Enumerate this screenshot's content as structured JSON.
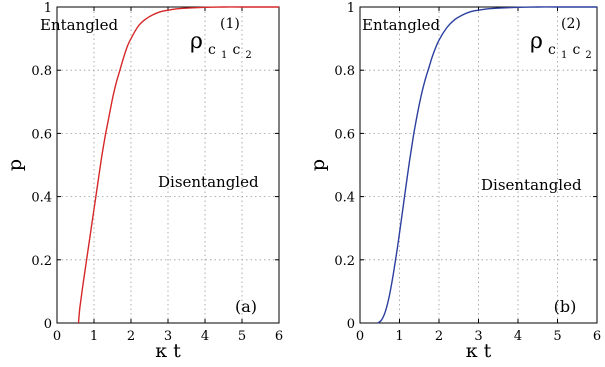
{
  "chart_data": [
    {
      "type": "line",
      "panel_tag": "(a)",
      "xlabel": "κ t",
      "ylabel": "p",
      "xlim": [
        0,
        6
      ],
      "ylim": [
        0,
        1
      ],
      "xticks": [
        "0",
        "1",
        "2",
        "3",
        "4",
        "5",
        "6"
      ],
      "yticks": [
        "0",
        "0.2",
        "0.4",
        "0.6",
        "0.8",
        "1"
      ],
      "grid": true,
      "annotations": {
        "upper_region": "Entangled",
        "lower_region": "Disentangled"
      },
      "state_label": {
        "symbol": "ρ",
        "sup": "(1)",
        "sub1": "c",
        "sub1_index": "1",
        "sub2": "c",
        "sub2_index": "2"
      },
      "series": [
        {
          "color": "#d62728",
          "x": [
            0.58,
            0.62,
            0.7,
            0.8,
            0.9,
            1.0,
            1.1,
            1.2,
            1.3,
            1.4,
            1.5,
            1.6,
            1.7,
            1.8,
            1.9,
            2.0,
            2.2,
            2.4,
            2.6,
            2.8,
            3.0,
            3.3,
            3.6,
            4.0,
            4.5,
            5.0,
            6.0
          ],
          "y": [
            0.0,
            0.05,
            0.12,
            0.2,
            0.28,
            0.36,
            0.44,
            0.52,
            0.59,
            0.65,
            0.71,
            0.76,
            0.8,
            0.84,
            0.875,
            0.9,
            0.94,
            0.962,
            0.976,
            0.985,
            0.99,
            0.995,
            0.997,
            0.999,
            1.0,
            1.0,
            1.0
          ]
        }
      ]
    },
    {
      "type": "line",
      "panel_tag": "(b)",
      "xlabel": "κ t",
      "ylabel": "p",
      "xlim": [
        0,
        6
      ],
      "ylim": [
        0,
        1
      ],
      "xticks": [
        "0",
        "1",
        "2",
        "3",
        "4",
        "5",
        "6"
      ],
      "yticks": [
        "0",
        "0.2",
        "0.4",
        "0.6",
        "0.8",
        "1"
      ],
      "grid": true,
      "annotations": {
        "upper_region": "Entangled",
        "lower_region": "Disentangled"
      },
      "state_label": {
        "symbol": "ρ",
        "sup": "(2)",
        "sub1": "c",
        "sub1_index": "1",
        "sub2": "c",
        "sub2_index": "2"
      },
      "series": [
        {
          "color": "#2b3f9e",
          "x": [
            0.45,
            0.55,
            0.65,
            0.75,
            0.85,
            0.95,
            1.05,
            1.15,
            1.25,
            1.35,
            1.45,
            1.55,
            1.65,
            1.75,
            1.85,
            2.0,
            2.2,
            2.4,
            2.6,
            2.8,
            3.0,
            3.3,
            3.6,
            4.0,
            4.5,
            5.0,
            6.0
          ],
          "y": [
            0.0,
            0.01,
            0.04,
            0.09,
            0.16,
            0.24,
            0.33,
            0.42,
            0.51,
            0.59,
            0.66,
            0.72,
            0.77,
            0.81,
            0.85,
            0.895,
            0.935,
            0.96,
            0.975,
            0.985,
            0.99,
            0.995,
            0.997,
            0.999,
            1.0,
            1.0,
            1.0
          ]
        }
      ]
    }
  ]
}
